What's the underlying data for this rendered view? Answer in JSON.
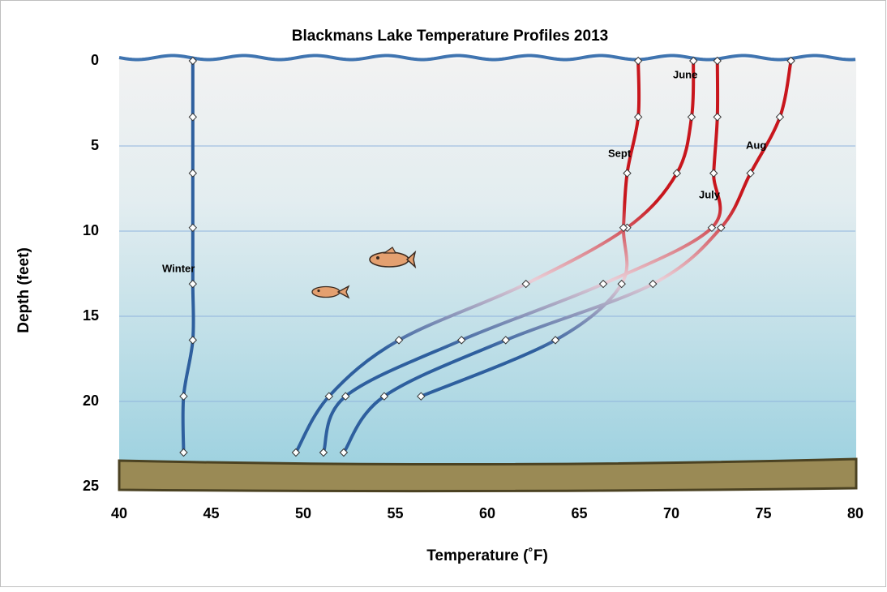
{
  "chart_data": {
    "type": "line",
    "title": "Blackmans Lake Temperature Profiles 2013",
    "x_label": "Temperature (˚F)",
    "y_label": "Depth (feet)",
    "y": [
      0,
      3.3,
      6.6,
      9.8,
      13.1,
      16.4,
      19.7,
      23
    ],
    "series": [
      {
        "name": "Winter",
        "color": "#2e5f9e",
        "values": [
          44,
          44,
          44,
          44,
          44,
          44,
          43.5,
          43.5
        ]
      },
      {
        "name": "June",
        "color": "#c8161d",
        "values": [
          71.2,
          71.1,
          70.3,
          67.6,
          62.1,
          55.2,
          51.4,
          49.6
        ]
      },
      {
        "name": "July",
        "color": "#c8161d",
        "values": [
          72.5,
          72.5,
          72.3,
          72.2,
          66.3,
          58.6,
          52.3,
          51.1
        ]
      },
      {
        "name": "Aug",
        "color": "#c8161d",
        "values": [
          76.5,
          75.9,
          74.3,
          72.7,
          69.0,
          61.0,
          54.4,
          52.2
        ]
      },
      {
        "name": "Sept",
        "color": "#c8161d",
        "values": [
          68.2,
          68.2,
          67.6,
          67.4,
          67.3,
          63.7,
          56.4,
          null
        ]
      }
    ],
    "deep_color": "#2e5f9e",
    "xlim": [
      40,
      80
    ],
    "xticks": [
      40,
      45,
      50,
      55,
      60,
      65,
      70,
      75,
      80
    ],
    "ylim": [
      0,
      25
    ],
    "yticks": [
      0,
      5,
      10,
      15,
      20,
      25
    ],
    "y_inverted": true,
    "grid": true
  }
}
